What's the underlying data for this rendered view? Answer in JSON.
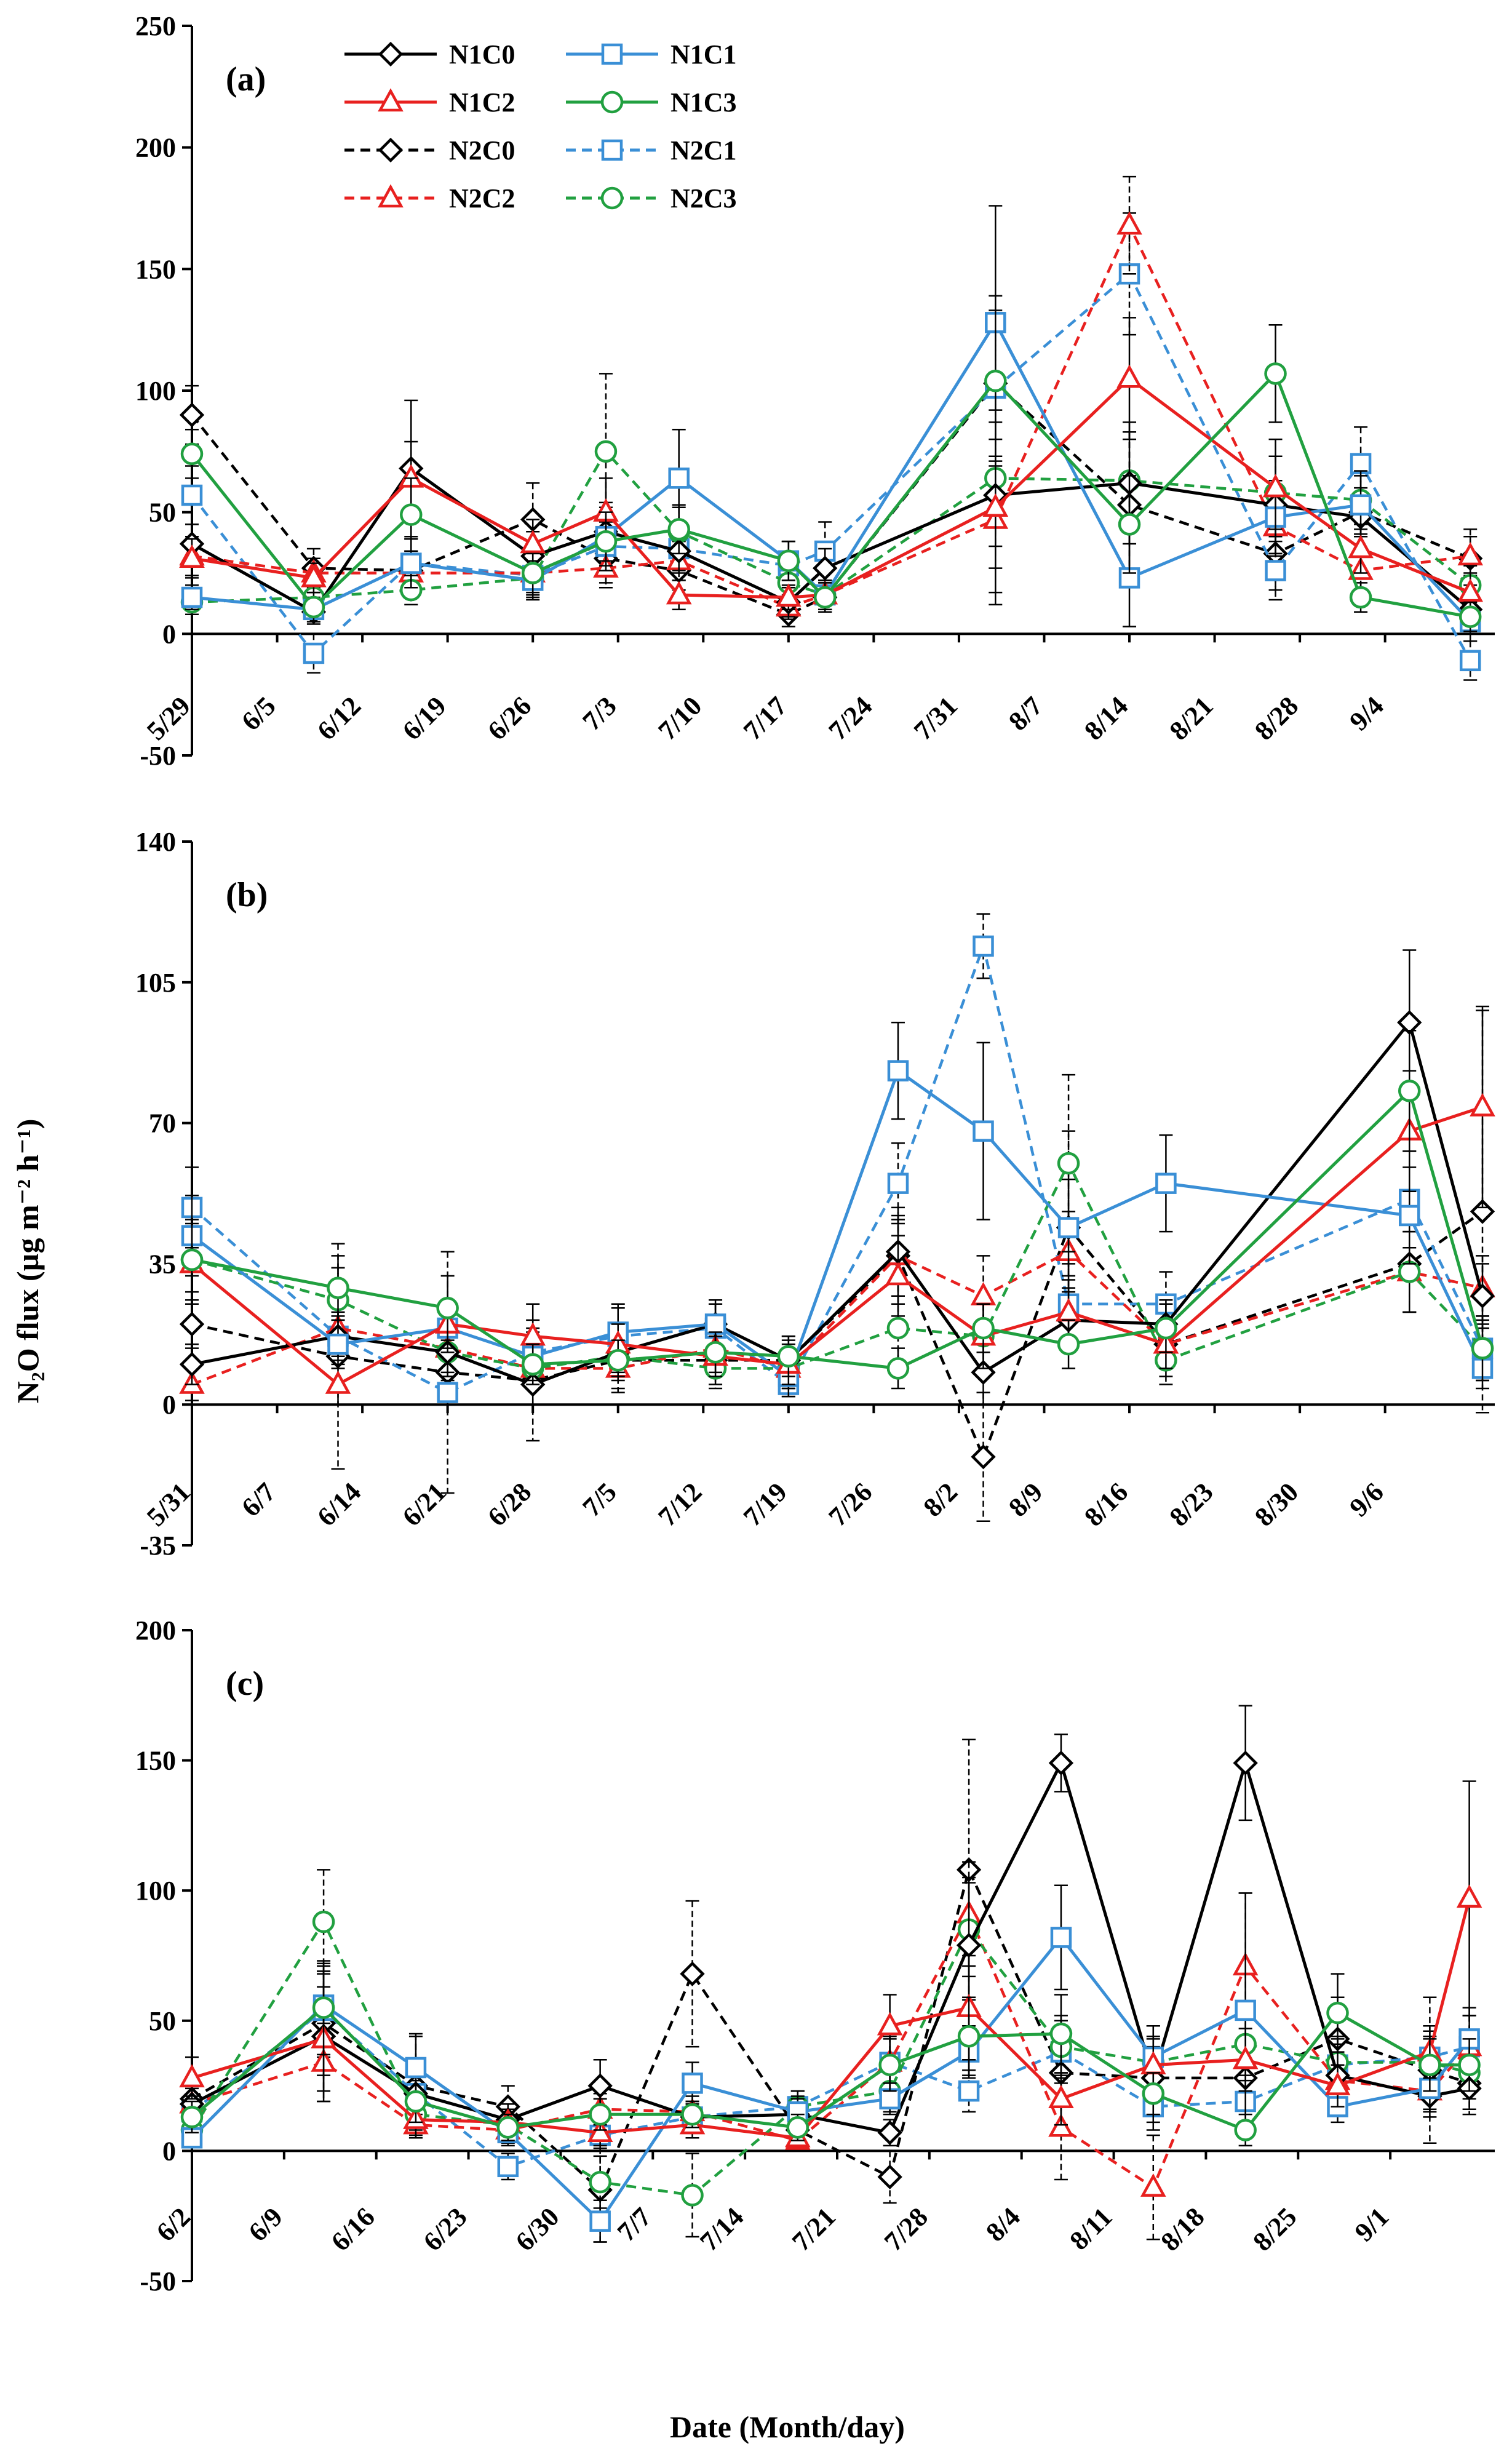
{
  "figure": {
    "ylabel": "N₂O flux (µg m⁻² h⁻¹)",
    "xlabel": "Date (Month/day)"
  },
  "legend": [
    {
      "name": "N1C0",
      "color": "#000000",
      "marker": "diamond",
      "dashed": false
    },
    {
      "name": "N1C1",
      "color": "#3a8fd6",
      "marker": "square",
      "dashed": false
    },
    {
      "name": "N1C2",
      "color": "#e8201f",
      "marker": "triangle",
      "dashed": false
    },
    {
      "name": "N1C3",
      "color": "#21a040",
      "marker": "circle",
      "dashed": false
    },
    {
      "name": "N2C0",
      "color": "#000000",
      "marker": "diamond",
      "dashed": true
    },
    {
      "name": "N2C1",
      "color": "#3a8fd6",
      "marker": "square",
      "dashed": true
    },
    {
      "name": "N2C2",
      "color": "#e8201f",
      "marker": "triangle",
      "dashed": true
    },
    {
      "name": "N2C3",
      "color": "#21a040",
      "marker": "circle",
      "dashed": true
    }
  ],
  "chart_data": [
    {
      "type": "line",
      "title": "(a)",
      "ylim": [
        -50,
        250
      ],
      "yticks": [
        -50,
        0,
        50,
        100,
        150,
        200,
        250
      ],
      "xlim": [
        0,
        106
      ],
      "tick_labels": [
        "5/29",
        "6/5",
        "6/12",
        "6/19",
        "6/26",
        "7/3",
        "7/10",
        "7/17",
        "7/24",
        "7/31",
        "8/7",
        "8/14",
        "8/21",
        "8/28",
        "9/4"
      ],
      "tick_days": [
        0,
        7,
        14,
        21,
        28,
        35,
        42,
        49,
        56,
        63,
        70,
        77,
        84,
        91,
        98
      ],
      "x": [
        0,
        10,
        18,
        28,
        34,
        40,
        49,
        52,
        66,
        77,
        89,
        96,
        105
      ],
      "series": [
        {
          "name": "N1C0",
          "values": [
            37,
            9,
            68,
            32,
            42,
            34,
            13,
            27,
            57,
            62,
            53,
            48,
            10
          ],
          "err": [
            8,
            5,
            28,
            10,
            12,
            8,
            6,
            8,
            45,
            25,
            20,
            8,
            10
          ]
        },
        {
          "name": "N1C1",
          "values": [
            15,
            10,
            29,
            22,
            40,
            64,
            30,
            16,
            128,
            23,
            48,
            53,
            5
          ],
          "err": [
            5,
            5,
            10,
            8,
            12,
            20,
            8,
            6,
            48,
            20,
            15,
            12,
            8
          ]
        },
        {
          "name": "N1C2",
          "values": [
            31,
            23,
            64,
            37,
            50,
            16,
            15,
            16,
            52,
            105,
            60,
            35,
            17
          ],
          "err": [
            8,
            6,
            15,
            10,
            14,
            6,
            5,
            6,
            35,
            25,
            20,
            10,
            8
          ]
        },
        {
          "name": "N1C3",
          "values": [
            74,
            11,
            49,
            25,
            38,
            43,
            30,
            15,
            104,
            45,
            107,
            15,
            7
          ],
          "err": [
            10,
            6,
            15,
            8,
            12,
            10,
            8,
            6,
            35,
            20,
            20,
            6,
            6
          ]
        },
        {
          "name": "N2C0",
          "values": [
            90,
            27,
            26,
            47,
            31,
            26,
            8,
            15,
            103,
            53,
            33,
            50,
            31
          ],
          "err": [
            12,
            8,
            8,
            15,
            10,
            8,
            5,
            6,
            30,
            30,
            15,
            10,
            12
          ]
        },
        {
          "name": "N2C1",
          "values": [
            57,
            -8,
            29,
            24,
            36,
            35,
            28,
            34,
            101,
            148,
            26,
            70,
            -11
          ],
          "err": [
            12,
            8,
            10,
            8,
            10,
            10,
            10,
            12,
            30,
            25,
            12,
            15,
            8
          ]
        },
        {
          "name": "N2C2",
          "values": [
            32,
            25,
            25,
            25,
            27,
            30,
            11,
            16,
            47,
            168,
            44,
            26,
            32
          ],
          "err": [
            8,
            6,
            6,
            6,
            8,
            8,
            5,
            6,
            20,
            20,
            12,
            8,
            8
          ]
        },
        {
          "name": "N2C3",
          "values": [
            13,
            15,
            18,
            23,
            75,
            42,
            21,
            16,
            64,
            63,
            58,
            55,
            20
          ],
          "err": [
            5,
            6,
            6,
            8,
            32,
            10,
            8,
            6,
            28,
            20,
            15,
            12,
            8
          ]
        }
      ]
    },
    {
      "type": "line",
      "title": "(b)",
      "ylim": [
        -35,
        140
      ],
      "yticks": [
        -35,
        0,
        35,
        70,
        105,
        140
      ],
      "xlim": [
        0,
        106
      ],
      "tick_labels": [
        "5/31",
        "6/7",
        "6/14",
        "6/21",
        "6/28",
        "7/5",
        "7/12",
        "7/19",
        "7/26",
        "8/2",
        "8/9",
        "8/16",
        "8/23",
        "8/30",
        "9/6"
      ],
      "tick_days": [
        0,
        7,
        14,
        21,
        28,
        35,
        42,
        49,
        56,
        63,
        70,
        77,
        84,
        91,
        98
      ],
      "x": [
        0,
        12,
        21,
        28,
        35,
        43,
        49,
        58,
        65,
        72,
        80,
        88,
        100,
        106
      ],
      "series": [
        {
          "name": "N1C0",
          "values": [
            10,
            17,
            13,
            5,
            13,
            20,
            11,
            38,
            8,
            21,
            20,
            null,
            95,
            27
          ],
          "err": [
            5,
            5,
            6,
            5,
            5,
            5,
            5,
            8,
            8,
            8,
            6,
            null,
            18,
            8
          ]
        },
        {
          "name": "N1C1",
          "values": [
            42,
            15,
            19,
            12,
            18,
            20,
            7,
            83,
            68,
            44,
            55,
            null,
            47,
            9
          ],
          "err": [
            10,
            6,
            6,
            6,
            6,
            6,
            5,
            12,
            22,
            12,
            12,
            null,
            12,
            5
          ]
        },
        {
          "name": "N1C2",
          "values": [
            35,
            5,
            20,
            17,
            15,
            12,
            10,
            32,
            17,
            23,
            15,
            null,
            68,
            74
          ],
          "err": [
            10,
            5,
            6,
            8,
            5,
            5,
            5,
            10,
            8,
            8,
            6,
            null,
            15,
            25
          ]
        },
        {
          "name": "N1C3",
          "values": [
            36,
            29,
            24,
            10,
            11,
            13,
            12,
            9,
            19,
            15,
            19,
            null,
            78,
            14
          ],
          "err": [
            10,
            8,
            8,
            5,
            5,
            5,
            5,
            5,
            6,
            6,
            6,
            null,
            15,
            8
          ]
        },
        {
          "name": "N2C0",
          "values": [
            20,
            12,
            8,
            6,
            11,
            11,
            11,
            37,
            -13,
            44,
            15,
            null,
            35,
            48
          ],
          "err": [
            6,
            28,
            30,
            15,
            8,
            6,
            6,
            10,
            16,
            24,
            8,
            null,
            12,
            50
          ]
        },
        {
          "name": "N2C1",
          "values": [
            49,
            17,
            3,
            13,
            17,
            19,
            5,
            55,
            114,
            25,
            25,
            null,
            51,
            14
          ],
          "err": [
            10,
            6,
            3,
            6,
            8,
            6,
            3,
            10,
            8,
            10,
            8,
            null,
            12,
            6
          ]
        },
        {
          "name": "N2C2",
          "values": [
            5,
            19,
            14,
            9,
            9,
            14,
            9,
            37,
            27,
            38,
            15,
            null,
            33,
            29
          ],
          "err": [
            4,
            6,
            6,
            5,
            5,
            5,
            5,
            12,
            10,
            10,
            6,
            null,
            10,
            8
          ]
        },
        {
          "name": "N2C3",
          "values": [
            36,
            26,
            13,
            9,
            12,
            9,
            9,
            19,
            17,
            60,
            11,
            null,
            33,
            14
          ],
          "err": [
            8,
            8,
            6,
            5,
            5,
            5,
            5,
            8,
            8,
            22,
            6,
            null,
            10,
            8
          ]
        }
      ]
    },
    {
      "type": "line",
      "title": "(c)",
      "ylim": [
        -50,
        200
      ],
      "yticks": [
        -50,
        0,
        50,
        100,
        150,
        200
      ],
      "xlim": [
        0,
        98
      ],
      "tick_labels": [
        "6/2",
        "6/9",
        "6/16",
        "6/23",
        "6/30",
        "7/7",
        "7/14",
        "7/21",
        "7/28",
        "8/4",
        "8/11",
        "8/18",
        "8/25",
        "9/1"
      ],
      "tick_days": [
        0,
        7,
        14,
        21,
        28,
        35,
        42,
        49,
        56,
        63,
        70,
        77,
        84,
        91
      ],
      "x": [
        0,
        10,
        17,
        24,
        31,
        38,
        46,
        53,
        59,
        66,
        73,
        80,
        87,
        94,
        97
      ],
      "series": [
        {
          "name": "N1C0",
          "values": [
            18,
            44,
            22,
            12,
            25,
            13,
            14,
            7,
            79,
            149,
            28,
            149,
            29,
            21,
            24
          ],
          "err": [
            8,
            25,
            8,
            6,
            10,
            6,
            6,
            5,
            26,
            11,
            20,
            22,
            12,
            8,
            8
          ]
        },
        {
          "name": "N1C1",
          "values": [
            5,
            56,
            32,
            7,
            -27,
            26,
            15,
            20,
            38,
            82,
            36,
            54,
            17,
            24,
            43
          ],
          "err": [
            3,
            15,
            12,
            5,
            8,
            8,
            6,
            6,
            10,
            20,
            12,
            45,
            6,
            8,
            12
          ]
        },
        {
          "name": "N1C2",
          "values": [
            28,
            43,
            12,
            11,
            7,
            10,
            5,
            48,
            55,
            20,
            33,
            35,
            25,
            38,
            97
          ],
          "err": [
            8,
            20,
            6,
            5,
            5,
            5,
            3,
            12,
            20,
            10,
            10,
            12,
            8,
            10,
            45
          ]
        },
        {
          "name": "N1C3",
          "values": [
            13,
            55,
            19,
            9,
            14,
            14,
            9,
            33,
            44,
            45,
            22,
            8,
            53,
            33,
            33
          ],
          "err": [
            6,
            18,
            8,
            5,
            6,
            5,
            5,
            10,
            15,
            15,
            8,
            6,
            15,
            10,
            10
          ]
        },
        {
          "name": "N2C0",
          "values": [
            20,
            49,
            25,
            17,
            -15,
            68,
            8,
            -10,
            108,
            30,
            28,
            28,
            43,
            31,
            26
          ],
          "err": [
            8,
            20,
            20,
            8,
            20,
            28,
            5,
            10,
            50,
            20,
            12,
            12,
            16,
            28,
            12
          ]
        },
        {
          "name": "N2C1",
          "values": [
            15,
            54,
            22,
            -6,
            6,
            13,
            17,
            34,
            23,
            38,
            17,
            19,
            33,
            36,
            40
          ],
          "err": [
            6,
            18,
            8,
            5,
            5,
            6,
            6,
            10,
            8,
            12,
            6,
            8,
            10,
            10,
            12
          ]
        },
        {
          "name": "N2C2",
          "values": [
            18,
            34,
            10,
            8,
            16,
            15,
            4,
            34,
            91,
            9,
            -14,
            71,
            27,
            23,
            40
          ],
          "err": [
            6,
            15,
            5,
            5,
            6,
            6,
            3,
            10,
            20,
            20,
            20,
            28,
            10,
            8,
            12
          ]
        },
        {
          "name": "N2C3",
          "values": [
            8,
            88,
            14,
            10,
            -12,
            -17,
            17,
            23,
            85,
            40,
            34,
            41,
            34,
            34,
            30
          ],
          "err": [
            5,
            20,
            6,
            5,
            10,
            16,
            6,
            8,
            18,
            12,
            10,
            12,
            10,
            10,
            10
          ]
        }
      ]
    }
  ]
}
